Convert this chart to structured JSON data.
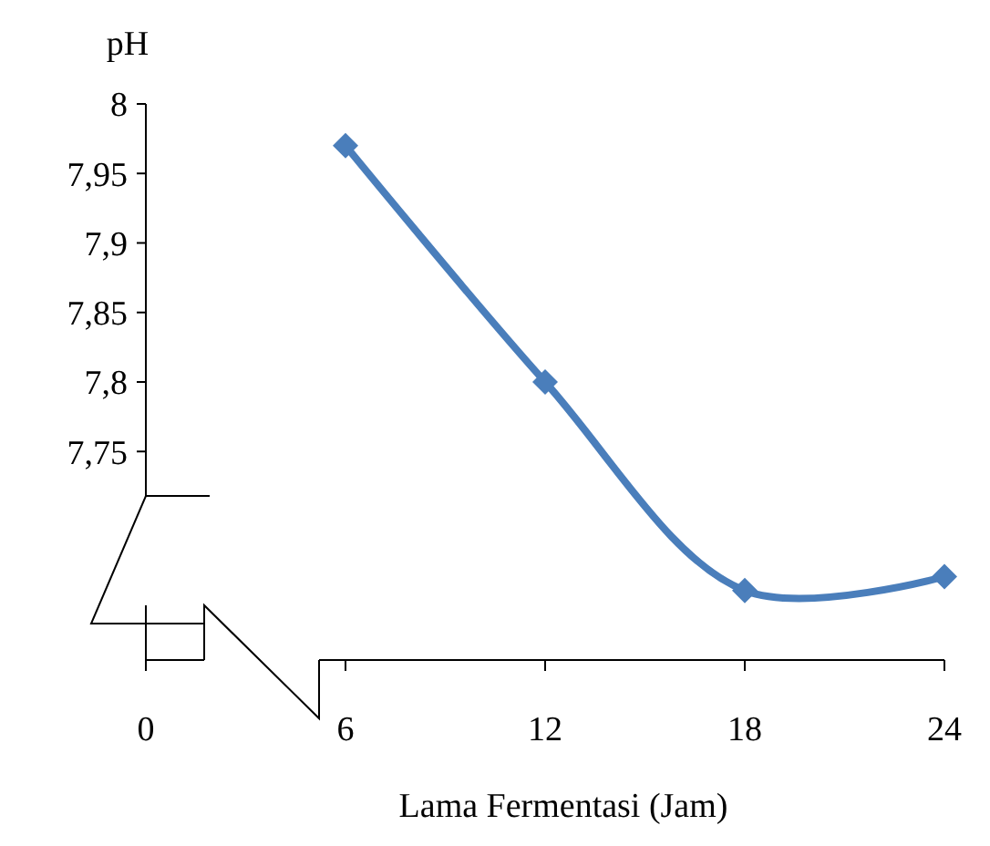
{
  "chart_data": {
    "type": "line",
    "ylabel": "pH",
    "xlabel": "Lama Fermentasi (Jam)",
    "x": [
      6,
      12,
      18,
      24
    ],
    "series": [
      {
        "color": "#4a7ebb",
        "values": [
          7.97,
          7.8,
          7.65,
          7.66
        ]
      }
    ],
    "xlim": [
      0,
      24
    ],
    "xticks": [
      0,
      6,
      12,
      18,
      24
    ],
    "ylim": [
      7.6,
      8
    ],
    "yticks": [
      {
        "value": 7.75,
        "label": "7,75"
      },
      {
        "value": 7.8,
        "label": "7,8"
      },
      {
        "value": 7.85,
        "label": "7,85"
      },
      {
        "value": 7.9,
        "label": "7,9"
      },
      {
        "value": 7.95,
        "label": "7,95"
      },
      {
        "value": 8,
        "label": "8"
      }
    ],
    "marker": "diamond",
    "line_style": "solid"
  }
}
